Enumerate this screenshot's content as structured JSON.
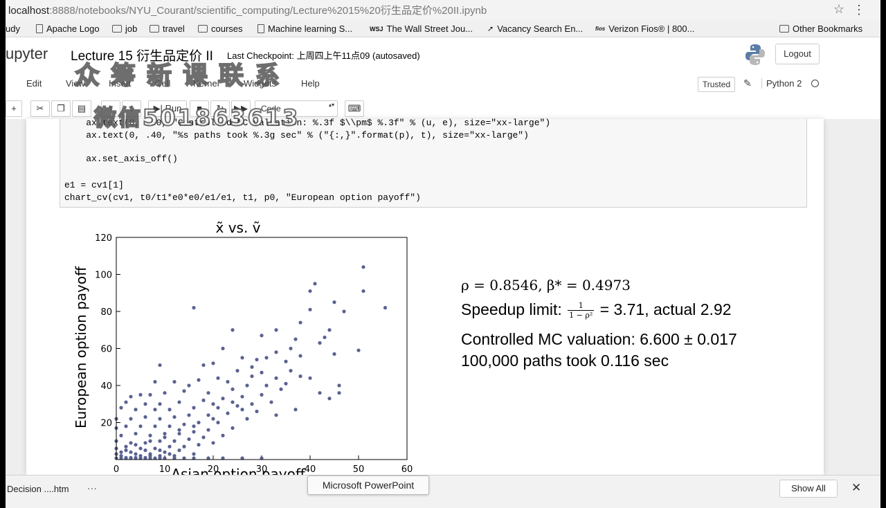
{
  "browser": {
    "url_host": "localhost",
    "url_path": ":8888/notebooks/NYU_Courant/scientific_computing/Lecture%2015%20衍生品定价%20II.ipynb"
  },
  "bookmarks": [
    {
      "label": "udy",
      "icon": "none"
    },
    {
      "label": "Apache Logo",
      "icon": "page"
    },
    {
      "label": "job",
      "icon": "folder"
    },
    {
      "label": "travel",
      "icon": "folder"
    },
    {
      "label": "courses",
      "icon": "folder"
    },
    {
      "label": "Machine learning S...",
      "icon": "page"
    },
    {
      "label": "The Wall Street Jou...",
      "icon": "wsj"
    },
    {
      "label": "Vacancy Search En...",
      "icon": "arrow"
    },
    {
      "label": "Verizon Fios® | 800...",
      "icon": "fios"
    },
    {
      "label": "Other Bookmarks",
      "icon": "folder"
    }
  ],
  "jupyter": {
    "logo": "upyter",
    "title": "Lecture 15 衍生品定价 II",
    "checkpoint": "Last Checkpoint: 上周四上午11点09   (autosaved)",
    "logout": "Logout",
    "trusted": "Trusted",
    "kernel": "Python 2"
  },
  "watermark": {
    "line1": "众筹新课联系",
    "line2": "微信501863613"
  },
  "menu": [
    "Edit",
    "View",
    "Insert",
    "Cell",
    "Kernel",
    "Widgets",
    "Help"
  ],
  "toolbar": {
    "run_label": "Run",
    "cell_type": "Code"
  },
  "code": [
    "    ax.text(0, .50, \"Controlled MC valuation: %.3f $\\\\pm$ %.3f\" % (u, e), size=\"xx-large\")",
    "    ax.text(0, .40, \"%s paths took %.3g sec\" % (\"{:,}\".format(p), t), size=\"xx-large\")",
    "",
    "    ax.set_axis_off()",
    "",
    "e1 = cv1[1]",
    "chart_cv(cv1, t0/t1*e0*e0/e1/e1, t1, p0, \"European option payoff\")"
  ],
  "results": {
    "line1": "ρ = 0.8546, β* = 0.4973",
    "speedup_label": "Speedup limit:",
    "speedup_num": "1",
    "speedup_den": "1 − ρ²",
    "speedup_value": "= 3.71, actual 2.92",
    "line3": "Controlled MC valuation: 6.600 ± 0.017",
    "line4": "100,000 paths took 0.116 sec"
  },
  "chart_data": {
    "type": "scatter",
    "title": "x̃ vs. ṽ",
    "ylabel": "European option payoff",
    "xlabel": "Asian option payoff",
    "xlim": [
      0,
      60
    ],
    "ylim": [
      0,
      120
    ],
    "xticks": [
      0,
      10,
      20,
      30,
      40,
      50,
      60
    ],
    "yticks": [
      20,
      40,
      60,
      80,
      100,
      120
    ],
    "color": "#5b6291",
    "points": [
      [
        51,
        104
      ],
      [
        41,
        95
      ],
      [
        40,
        91
      ],
      [
        51,
        91
      ],
      [
        16,
        82
      ],
      [
        55.5,
        82
      ],
      [
        45,
        85
      ],
      [
        47,
        80
      ],
      [
        40,
        81
      ],
      [
        38,
        74
      ],
      [
        44,
        70
      ],
      [
        33,
        70
      ],
      [
        24,
        70
      ],
      [
        30,
        67
      ],
      [
        43,
        66
      ],
      [
        37,
        65
      ],
      [
        42,
        63
      ],
      [
        36,
        60
      ],
      [
        22,
        60
      ],
      [
        50,
        59
      ],
      [
        33,
        58
      ],
      [
        45,
        57
      ],
      [
        38,
        56
      ],
      [
        31,
        55
      ],
      [
        26,
        55
      ],
      [
        29,
        54
      ],
      [
        35,
        53
      ],
      [
        20,
        52
      ],
      [
        18,
        51
      ],
      [
        9,
        51
      ],
      [
        28,
        50
      ],
      [
        25,
        48
      ],
      [
        30,
        47
      ],
      [
        40,
        44
      ],
      [
        38,
        45
      ],
      [
        33,
        44
      ],
      [
        46,
        40
      ],
      [
        46,
        36
      ],
      [
        44,
        33
      ],
      [
        23,
        42
      ],
      [
        21,
        44
      ],
      [
        17,
        43
      ],
      [
        15,
        40
      ],
      [
        12,
        42
      ],
      [
        8,
        42
      ],
      [
        27,
        40
      ],
      [
        24,
        38
      ],
      [
        19,
        36
      ],
      [
        14,
        37
      ],
      [
        10,
        36
      ],
      [
        7,
        35
      ],
      [
        5,
        35
      ],
      [
        3,
        34
      ],
      [
        30,
        35
      ],
      [
        26,
        34
      ],
      [
        22,
        33
      ],
      [
        18,
        32
      ],
      [
        13,
        31
      ],
      [
        9,
        30
      ],
      [
        6,
        30
      ],
      [
        2,
        31
      ],
      [
        32,
        31
      ],
      [
        28,
        30
      ],
      [
        25,
        29
      ],
      [
        21,
        28
      ],
      [
        16,
        28
      ],
      [
        11,
        27
      ],
      [
        8,
        27
      ],
      [
        4,
        27
      ],
      [
        1,
        28
      ],
      [
        29,
        26
      ],
      [
        23,
        25
      ],
      [
        19,
        24
      ],
      [
        15,
        24
      ],
      [
        12,
        23
      ],
      [
        9,
        22
      ],
      [
        6,
        23
      ],
      [
        3,
        22
      ],
      [
        0,
        22
      ],
      [
        27,
        22
      ],
      [
        21,
        20
      ],
      [
        17,
        20
      ],
      [
        14,
        19
      ],
      [
        11,
        18
      ],
      [
        8,
        18
      ],
      [
        5,
        18
      ],
      [
        2,
        18
      ],
      [
        0,
        17
      ],
      [
        24,
        17
      ],
      [
        19,
        16
      ],
      [
        16,
        15
      ],
      [
        13,
        14
      ],
      [
        10,
        14
      ],
      [
        7,
        13
      ],
      [
        4,
        14
      ],
      [
        1,
        13
      ],
      [
        22,
        13
      ],
      [
        18,
        12
      ],
      [
        15,
        11
      ],
      [
        12,
        10
      ],
      [
        9,
        10
      ],
      [
        6,
        9
      ],
      [
        3,
        9
      ],
      [
        0,
        10
      ],
      [
        20,
        9
      ],
      [
        17,
        8
      ],
      [
        14,
        7
      ],
      [
        11,
        7
      ],
      [
        8,
        6
      ],
      [
        5,
        6
      ],
      [
        2,
        5
      ],
      [
        0,
        6
      ],
      [
        13,
        5
      ],
      [
        10,
        4
      ],
      [
        7,
        3
      ],
      [
        4,
        3
      ],
      [
        1,
        2
      ],
      [
        0,
        3
      ],
      [
        16,
        3
      ],
      [
        9,
        2
      ],
      [
        6,
        1
      ],
      [
        3,
        1
      ],
      [
        0,
        0
      ],
      [
        1,
        0
      ],
      [
        2,
        0
      ],
      [
        3,
        0
      ],
      [
        4,
        0
      ],
      [
        5,
        0
      ],
      [
        6,
        0
      ],
      [
        7,
        0
      ],
      [
        8,
        0
      ],
      [
        9,
        0
      ],
      [
        10,
        0
      ],
      [
        12,
        0
      ],
      [
        14,
        0
      ],
      [
        16,
        0
      ],
      [
        19,
        0
      ],
      [
        22,
        0
      ],
      [
        26,
        0
      ],
      [
        30,
        0
      ],
      [
        2,
        1
      ],
      [
        4,
        1
      ],
      [
        5,
        2
      ],
      [
        7,
        2
      ],
      [
        11,
        3
      ],
      [
        12,
        2
      ],
      [
        3,
        4
      ],
      [
        6,
        5
      ],
      [
        9,
        5
      ],
      [
        1,
        4
      ],
      [
        2,
        7
      ],
      [
        4,
        8
      ],
      [
        7,
        10
      ],
      [
        10,
        12
      ],
      [
        13,
        16
      ],
      [
        16,
        18
      ],
      [
        20,
        22
      ],
      [
        26,
        27
      ],
      [
        34,
        38
      ],
      [
        36,
        48
      ],
      [
        28,
        45
      ],
      [
        31,
        40
      ],
      [
        35,
        41
      ],
      [
        33,
        24
      ],
      [
        37,
        27
      ],
      [
        42,
        36
      ],
      [
        24,
        31
      ],
      [
        20,
        30
      ]
    ]
  },
  "downloads": {
    "file": "Decision ....htm",
    "more": "···",
    "tooltip": "Microsoft PowerPoint",
    "show_all": "Show All",
    "close": "✕"
  }
}
